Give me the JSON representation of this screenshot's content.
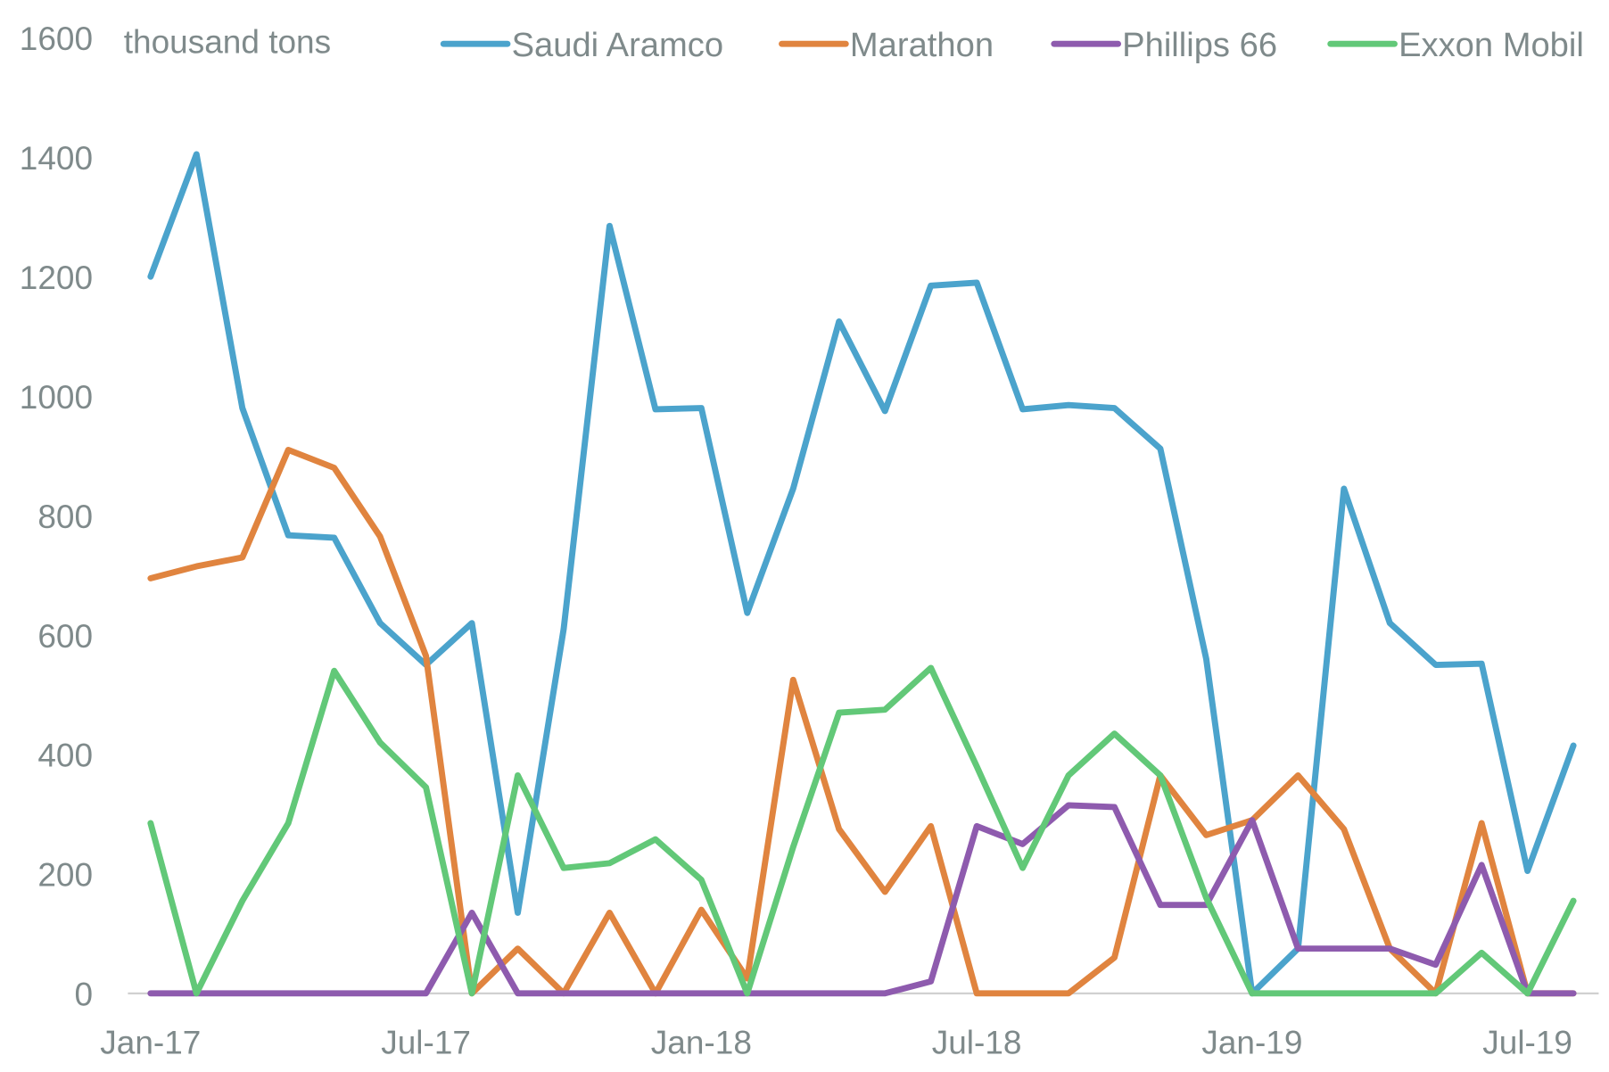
{
  "chart_data": {
    "type": "line",
    "title": "",
    "ylabel": "thousand tons",
    "xlabel": "",
    "ylim": [
      0,
      1600
    ],
    "yticks": [
      0,
      200,
      400,
      600,
      800,
      1000,
      1200,
      1400,
      1600
    ],
    "xtick_labels": [
      "Jan-17",
      "Jul-17",
      "Jan-18",
      "Jul-18",
      "Jan-19",
      "Jul-19"
    ],
    "xtick_indices": [
      0,
      6,
      12,
      18,
      24,
      30
    ],
    "legend_position": "top",
    "grid": false,
    "x": [
      "Jan-17",
      "Feb-17",
      "Mar-17",
      "Apr-17",
      "May-17",
      "Jun-17",
      "Jul-17",
      "Aug-17",
      "Sep-17",
      "Oct-17",
      "Nov-17",
      "Dec-17",
      "Jan-18",
      "Feb-18",
      "Mar-18",
      "Apr-18",
      "May-18",
      "Jun-18",
      "Jul-18",
      "Aug-18",
      "Sep-18",
      "Oct-18",
      "Nov-18",
      "Dec-18",
      "Jan-19",
      "Feb-19",
      "Mar-19",
      "Apr-19",
      "May-19",
      "Jun-19",
      "Jul-19",
      "Aug-19"
    ],
    "series": [
      {
        "name": "Saudi Aramco",
        "color": "#4BA3CC",
        "values": [
          1200,
          1405,
          980,
          767,
          763,
          620,
          550,
          620,
          135,
          610,
          1285,
          978,
          980,
          637,
          845,
          1125,
          975,
          1185,
          1190,
          978,
          985,
          980,
          912,
          560,
          0,
          75,
          845,
          620,
          550,
          552,
          205,
          415
        ]
      },
      {
        "name": "Marathon",
        "color": "#E0843F",
        "values": [
          695,
          715,
          730,
          910,
          880,
          765,
          565,
          0,
          75,
          0,
          135,
          0,
          140,
          25,
          525,
          275,
          170,
          280,
          0,
          0,
          0,
          60,
          365,
          265,
          290,
          365,
          275,
          75,
          0,
          285,
          0,
          0
        ]
      },
      {
        "name": "Phillips 66",
        "color": "#8E5BAE",
        "values": [
          0,
          0,
          0,
          0,
          0,
          0,
          0,
          135,
          0,
          0,
          0,
          0,
          0,
          0,
          0,
          0,
          0,
          20,
          280,
          250,
          315,
          312,
          148,
          148,
          290,
          75,
          75,
          75,
          48,
          215,
          0,
          0
        ]
      },
      {
        "name": "Exxon Mobil",
        "color": "#62C878",
        "values": [
          285,
          0,
          155,
          285,
          540,
          420,
          345,
          0,
          365,
          210,
          218,
          258,
          190,
          0,
          245,
          470,
          475,
          545,
          380,
          210,
          365,
          435,
          365,
          160,
          0,
          0,
          0,
          0,
          0,
          68,
          0,
          155
        ]
      }
    ]
  }
}
